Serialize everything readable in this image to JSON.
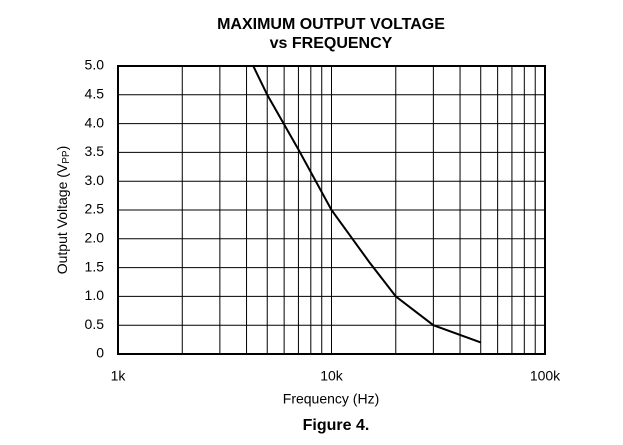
{
  "chart_data": {
    "type": "line",
    "title": [
      "MAXIMUM OUTPUT VOLTAGE",
      "vs FREQUENCY"
    ],
    "xlabel": "Frequency (Hz)",
    "ylabel": "Output Voltage (V",
    "ylabel_sub": "PP",
    "ylabel_end": ")",
    "caption": "Figure 4.",
    "xscale": "log",
    "x": [
      1000,
      4300,
      5000,
      7000,
      10000,
      15000,
      20000,
      30000,
      50000
    ],
    "series": [
      {
        "color": "#000000",
        "values": [
          5,
          5,
          4.5,
          3.55,
          2.5,
          1.6,
          1.0,
          0.5,
          0.2
        ]
      }
    ],
    "xlim": [
      1000,
      100000
    ],
    "xticks": [
      {
        "value": 1000,
        "label": "1k"
      },
      {
        "value": 10000,
        "label": "10k"
      },
      {
        "value": 100000,
        "label": "100k"
      }
    ],
    "xminor": [
      2000,
      3000,
      4000,
      5000,
      6000,
      7000,
      8000,
      9000,
      20000,
      30000,
      40000,
      50000,
      60000,
      70000,
      80000,
      90000
    ],
    "ylim": [
      0,
      5
    ],
    "yticks": [
      0,
      0.5,
      {
        "value": 1,
        "label": "1.0"
      },
      1.5,
      {
        "value": 2,
        "label": "2.0"
      },
      2.5,
      {
        "value": 3,
        "label": "3.0"
      },
      3.5,
      {
        "value": 4,
        "label": "4.0"
      },
      4.5,
      {
        "value": 5,
        "label": "5.0"
      }
    ],
    "grid": true
  }
}
